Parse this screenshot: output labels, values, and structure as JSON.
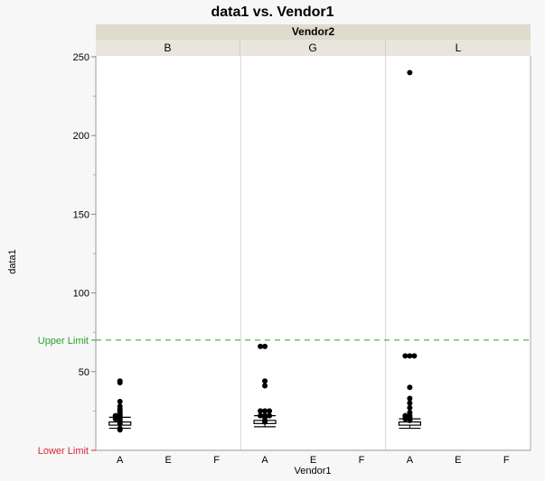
{
  "chart_data": {
    "type": "scatter",
    "title": "data1 vs. Vendor1",
    "xlabel": "Vendor1",
    "ylabel": "data1",
    "group_by": "Vendor2",
    "panels": [
      "B",
      "G",
      "L"
    ],
    "categories": [
      "A",
      "E",
      "F"
    ],
    "ylim": [
      0,
      250
    ],
    "yticks": [
      50,
      100,
      150,
      200,
      250
    ],
    "reference_lines": [
      {
        "label": "Upper Limit",
        "value": 70,
        "color": "#2ca02c",
        "style": "dashed"
      },
      {
        "label": "Lower Limit",
        "value": 0,
        "color": "#d62739",
        "style": "solid"
      }
    ],
    "series": [
      {
        "panel": "B",
        "category": "A",
        "points": [
          44,
          43,
          31,
          28,
          26,
          25,
          24,
          23,
          22,
          22,
          21,
          21,
          20,
          20,
          19,
          18,
          17,
          14,
          13
        ],
        "box": {
          "whisker_low": 14,
          "q1": 16,
          "median": 17,
          "q3": 18,
          "whisker_high": 21
        }
      },
      {
        "panel": "G",
        "category": "A",
        "points": [
          66,
          66,
          44,
          41,
          25,
          25,
          25,
          22,
          22,
          22,
          21,
          19,
          18
        ],
        "box": {
          "whisker_low": 15,
          "q1": 17,
          "median": 18,
          "q3": 19,
          "whisker_high": 22
        }
      },
      {
        "panel": "L",
        "category": "A",
        "points": [
          240,
          60,
          60,
          60,
          40,
          33,
          30,
          27,
          24,
          22,
          22,
          21,
          21,
          20,
          20,
          19
        ],
        "box": {
          "whisker_low": 14,
          "q1": 16,
          "median": 17,
          "q3": 18,
          "whisker_high": 20
        }
      },
      {
        "panel": "B",
        "category": "E",
        "points": []
      },
      {
        "panel": "B",
        "category": "F",
        "points": []
      },
      {
        "panel": "G",
        "category": "E",
        "points": []
      },
      {
        "panel": "G",
        "category": "F",
        "points": []
      },
      {
        "panel": "L",
        "category": "E",
        "points": []
      },
      {
        "panel": "L",
        "category": "F",
        "points": []
      }
    ]
  },
  "labels": {
    "title": "data1 vs. Vendor1",
    "group": "Vendor2",
    "panels": [
      "B",
      "G",
      "L"
    ],
    "xlabel": "Vendor1",
    "ylabel": "data1",
    "upper_limit": "Upper Limit",
    "lower_limit": "Lower Limit"
  }
}
